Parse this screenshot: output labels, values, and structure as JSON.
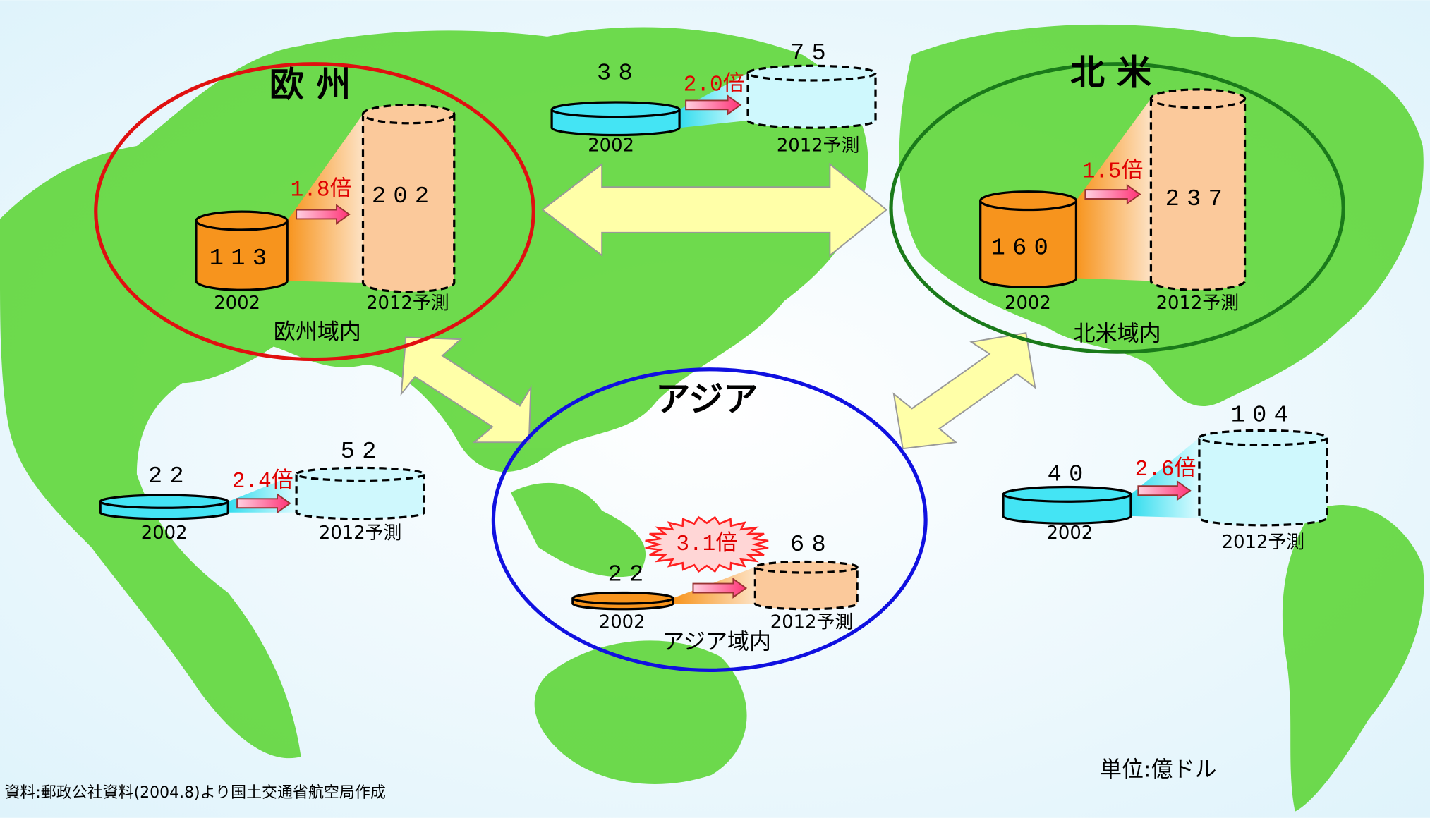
{
  "regions": [
    {
      "title": "欧 州",
      "label": "欧州域内",
      "year_2002": 2002,
      "value_2002": 113,
      "year_2012": "2012予測",
      "value_2012": 202,
      "ratio": "1.8倍"
    },
    {
      "title": "北 米",
      "label": "北米域内",
      "year_2002": 2002,
      "value_2002": 160,
      "year_2012": "2012予測",
      "value_2012": 237,
      "ratio": "1.5倍"
    },
    {
      "title": "アジア",
      "label": "アジア域内",
      "year_2002": 2002,
      "value_2002": 22,
      "year_2012": "2012予測",
      "value_2012": 68,
      "ratio": "3.1倍"
    }
  ],
  "routes": [
    {
      "year_2002": 2002,
      "value_2002": 38,
      "year_2012": "2012予測",
      "value_2012": 75,
      "ratio": "2.0倍"
    },
    {
      "year_2002": 2002,
      "value_2002": 22,
      "year_2012": "2012予測",
      "value_2012": 52,
      "ratio": "2.4倍"
    },
    {
      "year_2002": 2002,
      "value_2002": 40,
      "year_2012": "2012予測",
      "value_2012": 104,
      "ratio": "2.6倍"
    }
  ],
  "unit": "単位:億ドル",
  "source": "資料:郵政公社資料(2004.8)より国土交通省航空局作成"
}
